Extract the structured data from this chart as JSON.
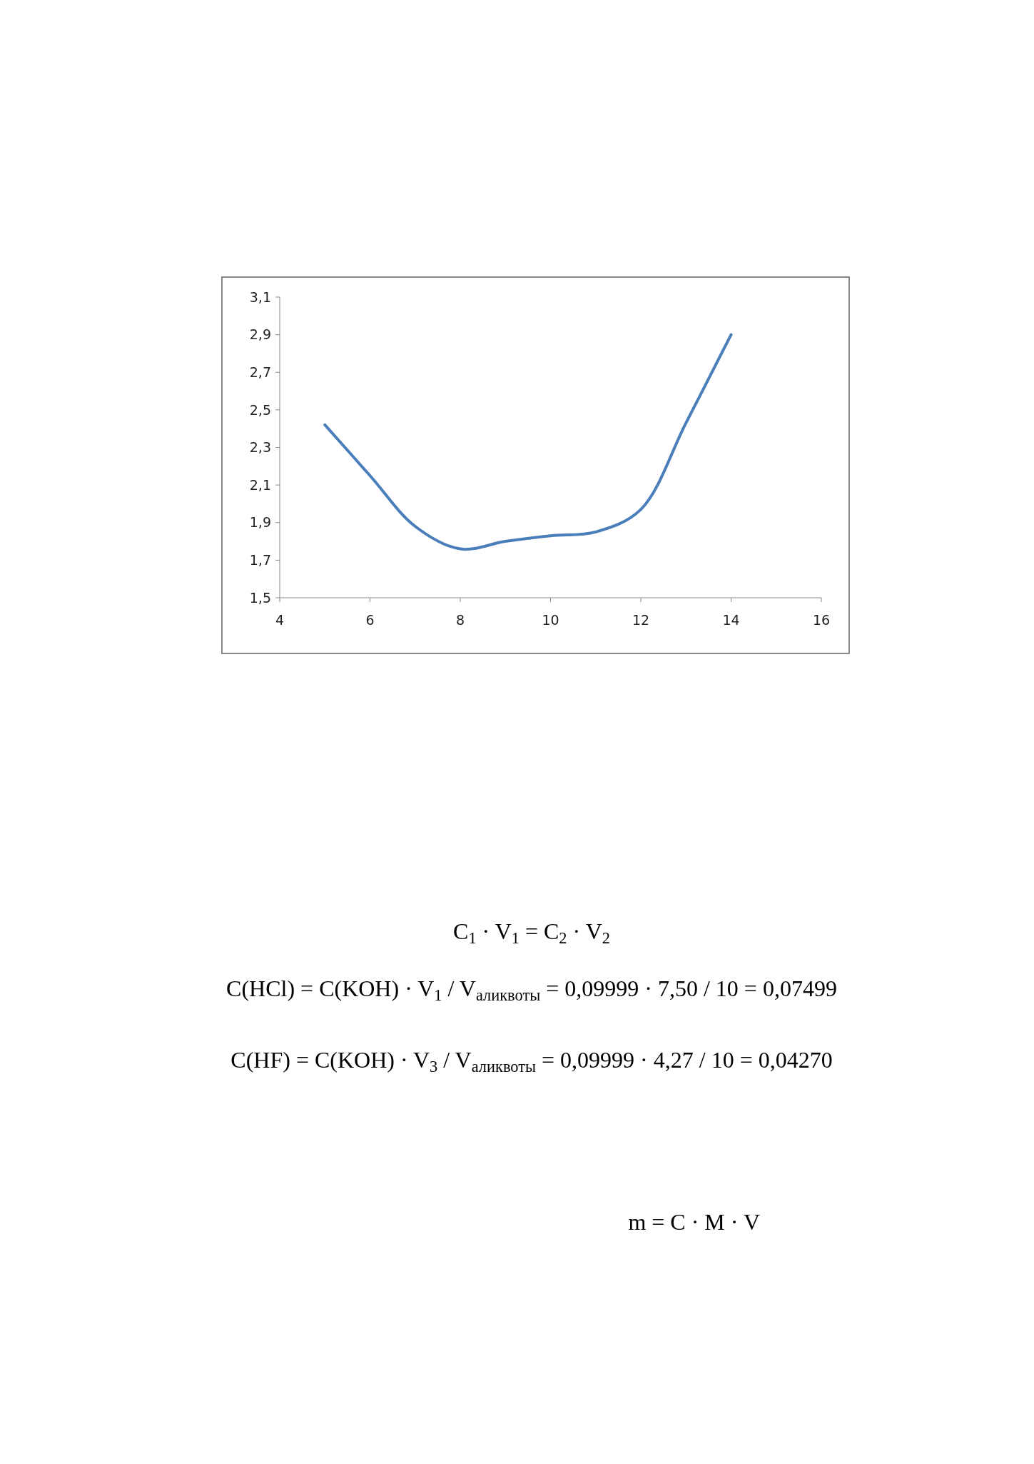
{
  "chart_data": {
    "type": "line",
    "x": [
      5,
      6,
      7,
      8,
      9,
      10,
      11,
      12,
      13,
      14
    ],
    "series": [
      {
        "color": "#4a7ebb",
        "values": [
          2.42,
          2.15,
          1.88,
          1.76,
          1.8,
          1.83,
          1.85,
          1.97,
          2.43,
          2.9
        ]
      }
    ],
    "xlim": [
      4,
      16
    ],
    "xticks": [
      4,
      6,
      8,
      10,
      12,
      14,
      16
    ],
    "ylim": [
      1.5,
      3.1
    ],
    "yticks": [
      {
        "value": 1.5,
        "label": "1,5"
      },
      {
        "value": 1.7,
        "label": "1,7"
      },
      {
        "value": 1.9,
        "label": "1,9"
      },
      {
        "value": 2.1,
        "label": "2,1"
      },
      {
        "value": 2.3,
        "label": "2,3"
      },
      {
        "value": 2.5,
        "label": "2,5"
      },
      {
        "value": 2.7,
        "label": "2,7"
      },
      {
        "value": 2.9,
        "label": "2,9"
      },
      {
        "value": 3.1,
        "label": "3,1"
      }
    ],
    "grid": false,
    "marker": "none",
    "line_style": "solid",
    "annotations": [
      "C$_{1}$ · V$_{1}$ = C$_{2}$ · V$_{2}$",
      "C(HCl) = C(KOH) · V$_{1}$ / V$_{аликвоты}$ = 0,09999 · 7,50 / 10 = 0,07499",
      "C(HF) = C(KOH) · V$_{3}$ / V$_{аликвоты}$ = 0,09999 · 4,27 / 10 = 0,04270",
      "m = C · M · V"
    ]
  }
}
